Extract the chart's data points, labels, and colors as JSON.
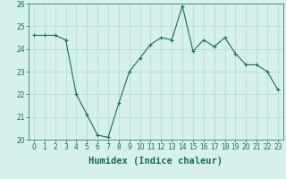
{
  "x": [
    0,
    1,
    2,
    3,
    4,
    5,
    6,
    7,
    8,
    9,
    10,
    11,
    12,
    13,
    14,
    15,
    16,
    17,
    18,
    19,
    20,
    21,
    22,
    23
  ],
  "y": [
    24.6,
    24.6,
    24.6,
    24.4,
    22.0,
    21.1,
    20.2,
    20.1,
    21.6,
    23.0,
    23.6,
    24.2,
    24.5,
    24.4,
    25.9,
    23.9,
    24.4,
    24.1,
    24.5,
    23.8,
    23.3,
    23.3,
    23.0,
    22.2
  ],
  "line_color": "#1a6b5a",
  "marker": "+",
  "marker_size": 3,
  "bg_color": "#d6f0ec",
  "grid_color": "#b8ddd8",
  "xlabel": "Humidex (Indice chaleur)",
  "ylim": [
    20,
    26
  ],
  "xlim": [
    -0.5,
    23.5
  ],
  "yticks": [
    20,
    21,
    22,
    23,
    24,
    25,
    26
  ],
  "xticks": [
    0,
    1,
    2,
    3,
    4,
    5,
    6,
    7,
    8,
    9,
    10,
    11,
    12,
    13,
    14,
    15,
    16,
    17,
    18,
    19,
    20,
    21,
    22,
    23
  ],
  "tick_label_fontsize": 5.5,
  "xlabel_fontsize": 7.5,
  "tick_color": "#1a6b5a"
}
